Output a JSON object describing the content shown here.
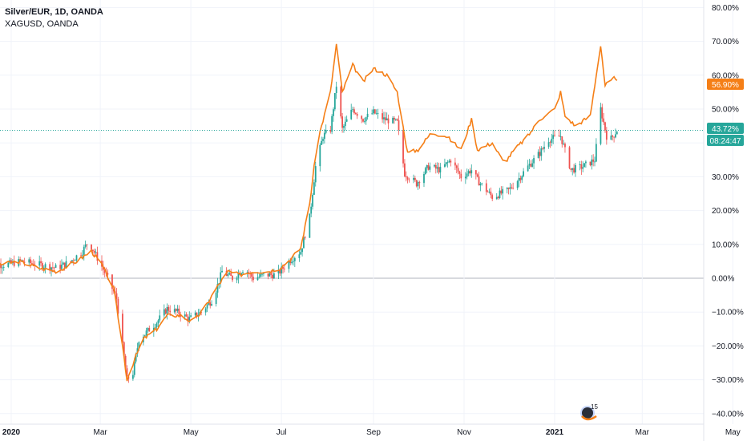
{
  "header": {
    "main_symbol": "Silver/EUR, 1D, OANDA",
    "compare_symbol": "XAGUSD, OANDA"
  },
  "badges": {
    "compare_value": "56.90%",
    "main_value": "43.72%",
    "countdown": "08:24:47"
  },
  "watermark": {
    "text": "15",
    "icon": "tradingview-logo-icon"
  },
  "colors": {
    "background": "#ffffff",
    "up": "#26a69a",
    "down": "#ef5350",
    "compare_line": "#f57f17",
    "zero_line": "#b2b5be",
    "grid": "#f0f3fa",
    "price_line": "#26a69a"
  },
  "chart_data": {
    "type": "candlestick+line",
    "title": "Silver/EUR, 1D, OANDA",
    "scale": "percent",
    "y_ticks": [
      "80.00%",
      "70.00%",
      "60.00%",
      "50.00%",
      "40.00%",
      "30.00%",
      "20.00%",
      "10.00%",
      "0.00%",
      "−10.00%",
      "−20.00%",
      "−30.00%",
      "−40.00%"
    ],
    "y_tick_values": [
      80,
      70,
      60,
      50,
      40,
      30,
      20,
      10,
      0,
      -10,
      -20,
      -30,
      -40
    ],
    "ylim": [
      -40,
      80
    ],
    "x_ticks": [
      "2020",
      "Mar",
      "May",
      "Jul",
      "Sep",
      "Nov",
      "2021",
      "Mar",
      "May"
    ],
    "x_tick_dates": [
      "2020-01-01",
      "2020-03-01",
      "2020-05-01",
      "2020-07-01",
      "2020-09-01",
      "2020-11-01",
      "2021-01-01",
      "2021-03-01",
      "2021-05-01"
    ],
    "grid": true,
    "series": [
      {
        "name": "Silver/EUR, 1D, OANDA",
        "style": "candles",
        "last": 43.72,
        "points": [
          [
            "2019-12-16",
            0
          ],
          [
            "2019-12-20",
            4
          ],
          [
            "2019-12-28",
            4
          ],
          [
            "2020-01-08",
            5
          ],
          [
            "2020-01-20",
            4
          ],
          [
            "2020-02-01",
            3
          ],
          [
            "2020-02-10",
            5
          ],
          [
            "2020-02-18",
            8
          ],
          [
            "2020-02-22",
            11
          ],
          [
            "2020-02-28",
            6
          ],
          [
            "2020-03-06",
            0
          ],
          [
            "2020-03-12",
            -6
          ],
          [
            "2020-03-16",
            -20
          ],
          [
            "2020-03-19",
            -30
          ],
          [
            "2020-03-23",
            -28
          ],
          [
            "2020-03-27",
            -18
          ],
          [
            "2020-04-01",
            -16
          ],
          [
            "2020-04-08",
            -13
          ],
          [
            "2020-04-15",
            -9
          ],
          [
            "2020-04-22",
            -10
          ],
          [
            "2020-04-30",
            -12
          ],
          [
            "2020-05-08",
            -10
          ],
          [
            "2020-05-16",
            -6
          ],
          [
            "2020-05-22",
            2
          ],
          [
            "2020-05-29",
            0
          ],
          [
            "2020-06-06",
            3
          ],
          [
            "2020-06-12",
            0
          ],
          [
            "2020-06-20",
            1
          ],
          [
            "2020-06-28",
            1
          ],
          [
            "2020-07-06",
            5
          ],
          [
            "2020-07-14",
            8
          ],
          [
            "2020-07-20",
            18
          ],
          [
            "2020-07-24",
            33
          ],
          [
            "2020-07-29",
            42
          ],
          [
            "2020-08-03",
            44
          ],
          [
            "2020-08-07",
            57
          ],
          [
            "2020-08-11",
            44
          ],
          [
            "2020-08-18",
            50
          ],
          [
            "2020-08-25",
            47
          ],
          [
            "2020-09-01",
            49
          ],
          [
            "2020-09-08",
            47
          ],
          [
            "2020-09-17",
            46
          ],
          [
            "2020-09-22",
            31
          ],
          [
            "2020-09-30",
            28
          ],
          [
            "2020-10-08",
            33
          ],
          [
            "2020-10-16",
            32
          ],
          [
            "2020-10-23",
            35
          ],
          [
            "2020-10-30",
            30
          ],
          [
            "2020-11-06",
            32
          ],
          [
            "2020-11-10",
            29
          ],
          [
            "2020-11-20",
            24
          ],
          [
            "2020-12-01",
            26
          ],
          [
            "2020-12-07",
            29
          ],
          [
            "2020-12-14",
            33
          ],
          [
            "2020-12-22",
            37
          ],
          [
            "2020-12-28",
            41
          ],
          [
            "2021-01-05",
            42
          ],
          [
            "2021-01-12",
            32
          ],
          [
            "2021-01-20",
            33
          ],
          [
            "2021-01-28",
            35
          ],
          [
            "2021-02-01",
            50
          ],
          [
            "2021-02-06",
            40
          ],
          [
            "2021-02-12",
            43.72
          ]
        ]
      },
      {
        "name": "XAGUSD, OANDA",
        "style": "line",
        "last": 56.9,
        "points": [
          [
            "2019-12-16",
            2
          ],
          [
            "2019-12-24",
            4
          ],
          [
            "2020-01-06",
            5
          ],
          [
            "2020-01-20",
            3
          ],
          [
            "2020-02-01",
            2
          ],
          [
            "2020-02-14",
            5
          ],
          [
            "2020-02-24",
            8
          ],
          [
            "2020-03-02",
            4
          ],
          [
            "2020-03-10",
            -3
          ],
          [
            "2020-03-16",
            -20
          ],
          [
            "2020-03-19",
            -30
          ],
          [
            "2020-03-24",
            -24
          ],
          [
            "2020-03-30",
            -18
          ],
          [
            "2020-04-08",
            -15
          ],
          [
            "2020-04-15",
            -11
          ],
          [
            "2020-04-24",
            -11
          ],
          [
            "2020-05-02",
            -13
          ],
          [
            "2020-05-10",
            -9
          ],
          [
            "2020-05-18",
            -3
          ],
          [
            "2020-05-26",
            2
          ],
          [
            "2020-06-03",
            1
          ],
          [
            "2020-06-12",
            2
          ],
          [
            "2020-06-22",
            2
          ],
          [
            "2020-06-30",
            3
          ],
          [
            "2020-07-08",
            6
          ],
          [
            "2020-07-14",
            9
          ],
          [
            "2020-07-20",
            22
          ],
          [
            "2020-07-25",
            40
          ],
          [
            "2020-08-03",
            55
          ],
          [
            "2020-08-07",
            69
          ],
          [
            "2020-08-11",
            55
          ],
          [
            "2020-08-18",
            63
          ],
          [
            "2020-08-25",
            58
          ],
          [
            "2020-09-01",
            62
          ],
          [
            "2020-09-10",
            60
          ],
          [
            "2020-09-17",
            55
          ],
          [
            "2020-09-24",
            37
          ],
          [
            "2020-10-01",
            38
          ],
          [
            "2020-10-10",
            43
          ],
          [
            "2020-10-20",
            42
          ],
          [
            "2020-10-30",
            38
          ],
          [
            "2020-11-06",
            47
          ],
          [
            "2020-11-10",
            38
          ],
          [
            "2020-11-20",
            40
          ],
          [
            "2020-11-28",
            34
          ],
          [
            "2020-12-05",
            38
          ],
          [
            "2020-12-14",
            42
          ],
          [
            "2020-12-22",
            47
          ],
          [
            "2021-01-01",
            50
          ],
          [
            "2021-01-05",
            55
          ],
          [
            "2021-01-08",
            48
          ],
          [
            "2021-01-15",
            45
          ],
          [
            "2021-01-25",
            48
          ],
          [
            "2021-02-01",
            69
          ],
          [
            "2021-02-04",
            57
          ],
          [
            "2021-02-10",
            59
          ],
          [
            "2021-02-14",
            56.9
          ]
        ]
      }
    ]
  }
}
